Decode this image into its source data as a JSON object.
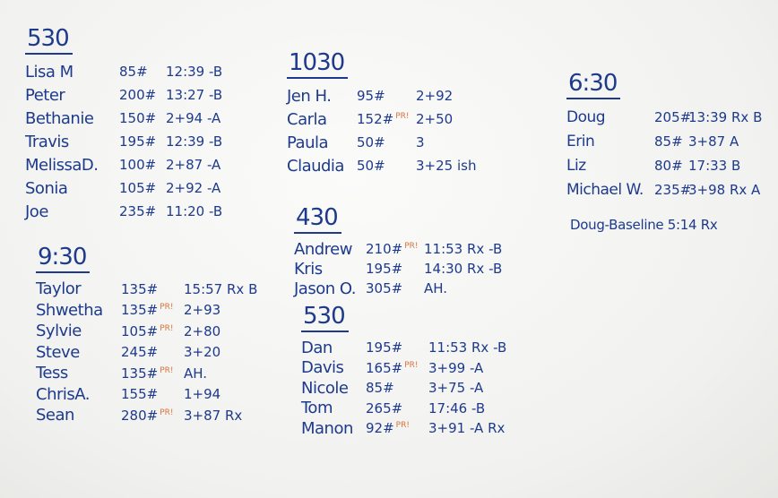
{
  "sections": [
    {
      "title": "530",
      "rows": [
        {
          "name": "Lisa M",
          "weight": "85#",
          "result": "12:39 -B"
        },
        {
          "name": "Peter",
          "weight": "200#",
          "result": "13:27 -B"
        },
        {
          "name": "Bethanie",
          "weight": "150#",
          "result": "2+94 -A"
        },
        {
          "name": "Travis",
          "weight": "195#",
          "result": "12:39 -B"
        },
        {
          "name": "MelissaD.",
          "weight": "100#",
          "result": "2+87 -A"
        },
        {
          "name": "Sonia",
          "weight": "105#",
          "result": "2+92 -A"
        },
        {
          "name": "Joe",
          "weight": "235#",
          "result": "11:20 -B"
        }
      ]
    },
    {
      "title": "9:30",
      "rows": [
        {
          "name": "Taylor",
          "weight": "135#",
          "result": "15:57 Rx B"
        },
        {
          "name": "Shwetha",
          "weight": "135#",
          "pr": "PR!",
          "result": "2+93"
        },
        {
          "name": "Sylvie",
          "weight": "105#",
          "pr": "PR!",
          "result": "2+80"
        },
        {
          "name": "Steve",
          "weight": "245#",
          "result": "3+20"
        },
        {
          "name": "Tess",
          "weight": "135#",
          "pr": "PR!",
          "result": "AH."
        },
        {
          "name": "ChrisA.",
          "weight": "155#",
          "result": "1+94"
        },
        {
          "name": "Sean",
          "weight": "280#",
          "pr": "PR!",
          "result": "3+87 Rx"
        }
      ]
    },
    {
      "title": "1030",
      "rows": [
        {
          "name": "Jen H.",
          "weight": "95#",
          "result": "2+92"
        },
        {
          "name": "Carla",
          "weight": "152#",
          "pr": "PR!",
          "result": "2+50"
        },
        {
          "name": "Paula",
          "weight": "50#",
          "result": "3"
        },
        {
          "name": "Claudia",
          "weight": "50#",
          "result": "3+25 ish"
        }
      ]
    },
    {
      "title": "430",
      "rows": [
        {
          "name": "Andrew",
          "weight": "210#",
          "pr": "PR!",
          "result": "11:53 Rx -B"
        },
        {
          "name": "Kris",
          "weight": "195#",
          "result": "14:30 Rx -B"
        },
        {
          "name": "Jason O.",
          "weight": "305#",
          "result": "AH."
        }
      ]
    },
    {
      "title": "530",
      "rows": [
        {
          "name": "Dan",
          "weight": "195#",
          "result": "11:53 Rx -B"
        },
        {
          "name": "Davis",
          "weight": "165#",
          "pr": "PR!",
          "result": "3+99 -A"
        },
        {
          "name": "Nicole",
          "weight": "85#",
          "result": "3+75 -A"
        },
        {
          "name": "Tom",
          "weight": "265#",
          "result": "17:46 -B"
        },
        {
          "name": "Manon",
          "weight": "92#",
          "pr": "PR!",
          "result": "3+91 -A Rx"
        }
      ]
    },
    {
      "title": "6:30",
      "rows": [
        {
          "name": "Doug",
          "weight": "205#",
          "result": "13:39 Rx B"
        },
        {
          "name": "Erin",
          "weight": "85#",
          "result": "3+87 A"
        },
        {
          "name": "Liz",
          "weight": "80#",
          "result": "17:33 B"
        },
        {
          "name": "Michael W.",
          "weight": "235#",
          "result": "3+98 Rx A"
        }
      ]
    }
  ],
  "note": "Doug-Baseline 5:14 Rx"
}
